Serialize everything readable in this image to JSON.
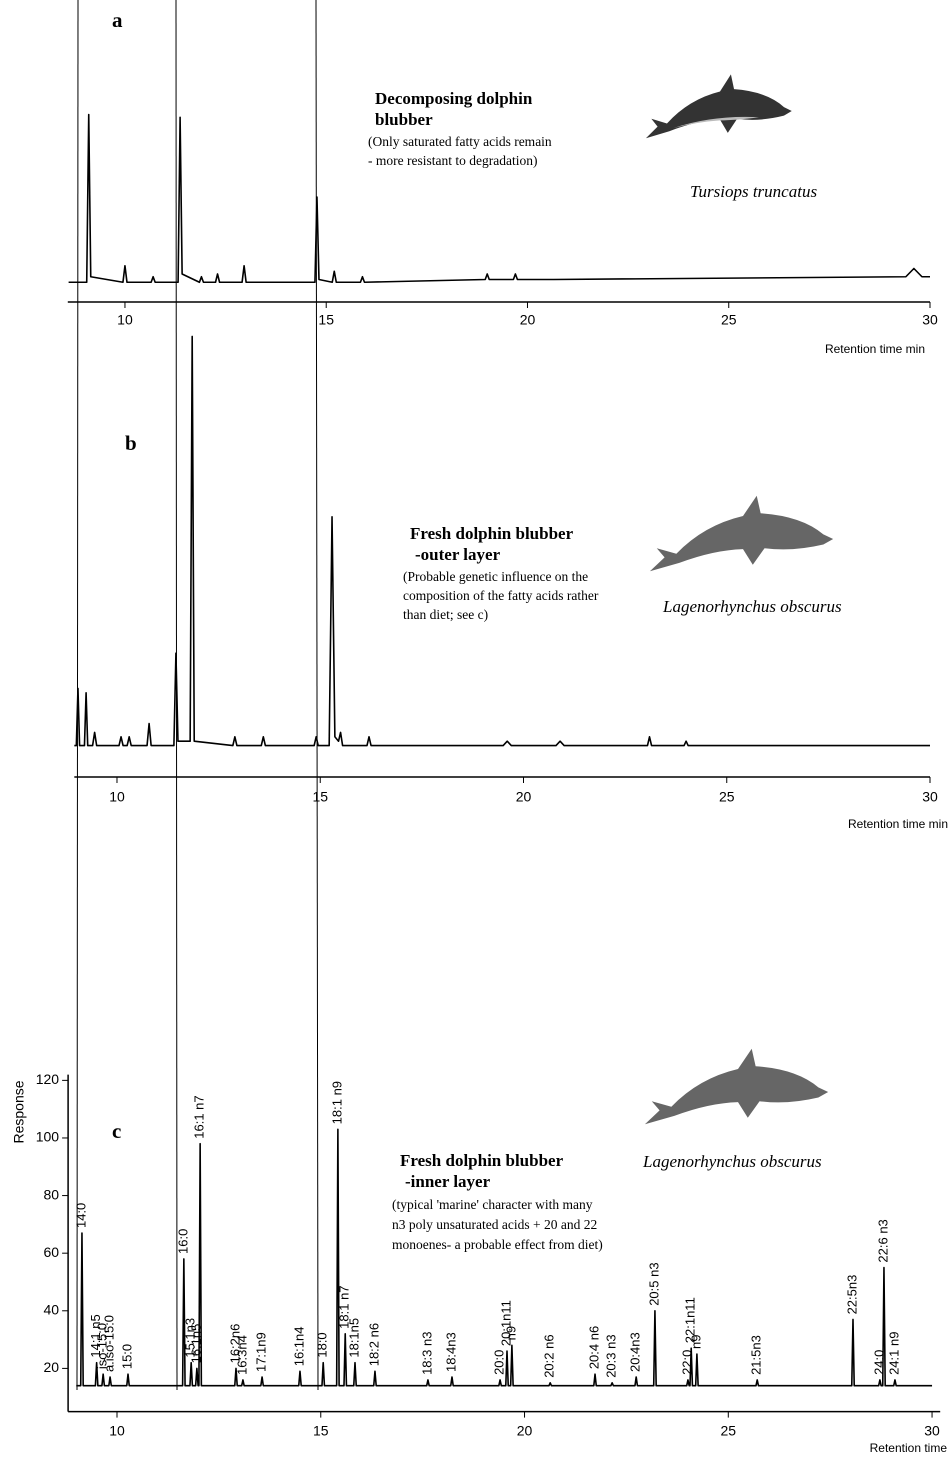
{
  "chart_data": [
    {
      "type": "line",
      "panel_label": "a",
      "title": [
        "Decomposing dolphin",
        "blubber"
      ],
      "note": [
        "(Only saturated fatty acids remain",
        "- more resistant to degradation)"
      ],
      "species": "Tursiops  truncatus",
      "x_label": "Retention time min",
      "xlim": [
        8.58,
        30
      ],
      "xticks": [
        10,
        15,
        20,
        25,
        30
      ],
      "ylim": [
        0,
        100
      ],
      "color": "#000000",
      "x": [
        8.6,
        9.05,
        9.1,
        9.15,
        9.95,
        10.0,
        10.05,
        10.65,
        10.7,
        10.75,
        11.32,
        11.37,
        11.42,
        11.85,
        11.9,
        11.95,
        12.25,
        12.3,
        12.35,
        12.91,
        12.96,
        13.01,
        14.72,
        14.77,
        14.82,
        15.15,
        15.2,
        15.25,
        15.85,
        15.9,
        15.95,
        18.95,
        19.0,
        19.05,
        19.65,
        19.7,
        19.75,
        20.55,
        20.6,
        20.65,
        29.4,
        29.6,
        29.8,
        30
      ],
      "values": [
        1,
        1,
        62,
        3,
        1,
        7,
        1,
        1,
        3,
        1,
        1,
        61,
        4,
        1,
        3,
        1,
        1,
        4,
        1,
        1,
        7,
        1,
        1,
        32,
        2,
        1,
        5,
        1,
        1,
        3,
        1,
        2,
        4,
        2,
        2,
        4,
        2,
        2,
        2,
        2,
        3,
        6,
        3,
        3
      ]
    },
    {
      "type": "line",
      "panel_label": "b",
      "title": [
        "Fresh dolphin blubber",
        "-outer layer"
      ],
      "note": [
        "(Probable genetic influence on the",
        "composition of the fatty acids rather",
        "than diet; see c)"
      ],
      "species": "Lagenorhynchus  obscurus",
      "x_label": "Retention time min",
      "xlim": [
        8.95,
        30
      ],
      "xticks": [
        10,
        15,
        20,
        25,
        30
      ],
      "ylim": [
        0,
        100
      ],
      "color": "#000000",
      "x": [
        8.95,
        9.0,
        9.04,
        9.08,
        9.2,
        9.24,
        9.28,
        9.4,
        9.45,
        9.5,
        10.05,
        10.1,
        10.15,
        10.25,
        10.3,
        10.35,
        10.74,
        10.79,
        10.84,
        11.4,
        11.45,
        11.5,
        11.8,
        11.85,
        11.9,
        12.85,
        12.9,
        12.95,
        13.55,
        13.6,
        13.65,
        14.85,
        14.9,
        14.95,
        15.22,
        15.29,
        15.36,
        15.45,
        15.5,
        15.55,
        16.15,
        16.2,
        16.25,
        19.5,
        19.6,
        19.7,
        20.8,
        20.9,
        21.0,
        23.05,
        23.1,
        23.15,
        23.95,
        24.0,
        24.05,
        30
      ],
      "values": [
        1,
        1,
        14,
        1,
        1,
        13,
        1,
        1,
        4,
        1,
        1,
        3,
        1,
        1,
        3,
        1,
        1,
        6,
        1,
        1,
        22,
        2,
        2,
        94,
        2,
        1,
        3,
        1,
        1,
        3,
        1,
        1,
        3,
        1,
        1,
        53,
        3,
        2,
        4,
        1,
        1,
        3,
        1,
        1,
        2,
        1,
        1,
        2,
        1,
        1,
        3,
        1,
        1,
        2,
        1,
        1
      ]
    },
    {
      "type": "line",
      "panel_label": "c",
      "title": [
        "Fresh dolphin blubber",
        "-inner layer"
      ],
      "note": [
        "(typical 'marine' character with many",
        "n3 poly unsaturated acids + 20 and 22",
        "monoenes- a probable effect from diet)"
      ],
      "species": "Lagenorhynchus  obscurus",
      "x_label": "Retention time",
      "y_label": "Response",
      "xlim": [
        8.8,
        30.2
      ],
      "xticks": [
        10,
        15,
        20,
        25,
        30
      ],
      "ylim": [
        5,
        122
      ],
      "yticks": [
        20,
        40,
        60,
        80,
        100,
        120
      ],
      "color": "#000000",
      "x": [
        9.0,
        9.11,
        9.14,
        9.17,
        9.47,
        9.5,
        9.53,
        9.63,
        9.66,
        9.69,
        9.8,
        9.83,
        9.86,
        10.24,
        10.27,
        10.3,
        11.61,
        11.64,
        11.67,
        11.79,
        11.82,
        11.85,
        11.93,
        11.96,
        11.99,
        12.01,
        12.04,
        12.07,
        12.89,
        12.92,
        12.95,
        13.06,
        13.09,
        13.12,
        13.53,
        13.56,
        13.59,
        14.46,
        14.49,
        14.52,
        15.03,
        15.06,
        15.09,
        15.39,
        15.42,
        15.45,
        15.57,
        15.6,
        15.63,
        15.81,
        15.84,
        15.87,
        16.3,
        16.33,
        16.36,
        17.6,
        17.63,
        17.66,
        18.19,
        18.22,
        18.25,
        19.37,
        19.4,
        19.43,
        19.54,
        19.57,
        19.6,
        19.66,
        19.69,
        19.72,
        20.6,
        20.63,
        20.66,
        21.7,
        21.73,
        21.76,
        22.12,
        22.15,
        22.18,
        22.71,
        22.74,
        22.77,
        23.17,
        23.2,
        23.23,
        23.98,
        24.01,
        24.04,
        24.06,
        24.09,
        24.12,
        24.2,
        24.23,
        24.26,
        25.68,
        25.71,
        25.74,
        28.03,
        28.06,
        28.09,
        28.69,
        28.72,
        28.75,
        28.79,
        28.82,
        28.85,
        29.06,
        29.09,
        29.12,
        30.0
      ],
      "values": [
        14,
        14,
        67,
        14,
        14,
        22,
        14,
        14,
        18,
        14,
        14,
        17,
        14,
        14,
        18,
        14,
        14,
        58,
        14,
        14,
        22,
        14,
        14,
        20,
        14,
        14,
        98,
        14,
        14,
        20,
        14,
        14,
        16,
        14,
        14,
        17,
        14,
        14,
        19,
        14,
        14,
        22,
        14,
        14,
        103,
        14,
        14,
        32,
        14,
        14,
        22,
        14,
        14,
        19,
        14,
        14,
        16,
        14,
        14,
        17,
        14,
        14,
        16,
        14,
        14,
        26,
        14,
        14,
        28,
        14,
        14,
        15,
        14,
        14,
        18,
        14,
        14,
        15,
        14,
        14,
        17,
        14,
        14,
        40,
        14,
        14,
        16,
        14,
        14,
        27,
        14,
        14,
        25,
        14,
        14,
        16,
        14,
        14,
        37,
        14,
        14,
        16,
        14,
        14,
        55,
        14,
        14,
        16,
        14,
        14
      ],
      "labels": [
        null,
        null,
        "14:0",
        null,
        null,
        "14:1 n5",
        null,
        null,
        "iso-15:0",
        null,
        null,
        "a.iso-15:0",
        null,
        null,
        "15:0",
        null,
        null,
        "16:0",
        null,
        null,
        "15:1n3",
        null,
        null,
        "16:1n5",
        null,
        null,
        "16:1 n7",
        null,
        null,
        "16:2n6",
        null,
        null,
        "16:3n4",
        null,
        null,
        "17:1n9",
        null,
        null,
        "16:1n4",
        null,
        null,
        "18:0",
        null,
        null,
        "18:1 n9",
        null,
        null,
        "18:1 n7",
        null,
        null,
        "18:1n5",
        null,
        null,
        "18:2 n6",
        null,
        null,
        "18:3 n3",
        null,
        null,
        "18:4n3",
        null,
        null,
        "20:0",
        null,
        null,
        "20:1n11",
        null,
        null,
        "n9",
        null,
        null,
        "20:2 n6",
        null,
        null,
        "20:4 n6",
        null,
        null,
        "20:3 n3",
        null,
        null,
        "20:4n3",
        null,
        null,
        "20:5 n3",
        null,
        null,
        "22:0",
        null,
        null,
        "22:1n11",
        null,
        null,
        "n9",
        null,
        null,
        "21:5n3",
        null,
        null,
        "22:5n3",
        null,
        null,
        "24:0",
        null,
        null,
        "22:6 n3",
        null,
        null,
        "24:1 n9",
        null,
        null
      ]
    }
  ]
}
